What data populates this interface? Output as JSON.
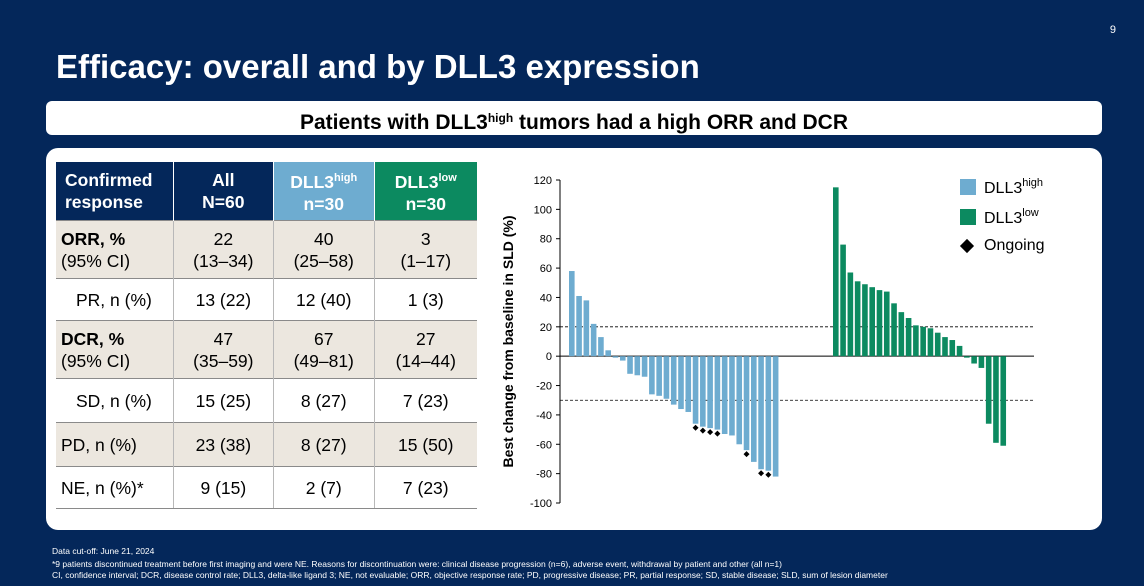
{
  "slide_number": "9",
  "title": "Efficacy: overall and by DLL3 expression",
  "banner": {
    "pre": "Patients with DLL3",
    "sup": "high",
    "post": " tumors had a high ORR and DCR"
  },
  "table": {
    "header": {
      "c0": [
        "Confirmed",
        "response"
      ],
      "c1": [
        "All",
        "N=60"
      ],
      "c2": {
        "base": "DLL3",
        "sup": "high",
        "n": "n=30"
      },
      "c3": {
        "base": "DLL3",
        "sup": "low",
        "n": "n=30"
      }
    },
    "rows": [
      {
        "label": "ORR, %",
        "label2": "(95% CI)",
        "all": "22",
        "all2": "(13–34)",
        "high": "40",
        "high2": "(25–58)",
        "low": "3",
        "low2": "(1–17)"
      },
      {
        "label": "PR, n (%)",
        "all": "13 (22)",
        "high": "12 (40)",
        "low": "1 (3)"
      },
      {
        "label": "DCR, %",
        "label2": "(95% CI)",
        "all": "47",
        "all2": "(35–59)",
        "high": "67",
        "high2": "(49–81)",
        "low": "27",
        "low2": "(14–44)"
      },
      {
        "label": "SD, n (%)",
        "all": "15 (25)",
        "high": "8 (27)",
        "low": "7 (23)"
      },
      {
        "label": "PD, n (%)",
        "all": "23 (38)",
        "high": "8 (27)",
        "low": "15 (50)"
      },
      {
        "label": "NE, n (%)*",
        "all": "9 (15)",
        "high": "2 (7)",
        "low": "7 (23)"
      }
    ]
  },
  "legend": {
    "high_base": "DLL3",
    "high_sup": "high",
    "low_base": "DLL3",
    "low_sup": "low",
    "ongoing": "Ongoing"
  },
  "colors": {
    "high": "#6eacd0",
    "low": "#0c8a60",
    "navy": "#04275a"
  },
  "chart_data": {
    "type": "bar",
    "ylabel": "Best change from baseline in SLD (%)",
    "ylim": [
      -100,
      120
    ],
    "yticks": [
      120,
      100,
      80,
      60,
      40,
      20,
      0,
      -20,
      -40,
      -60,
      -80,
      -100
    ],
    "reference_lines": [
      20,
      -30
    ],
    "series": [
      {
        "name": "DLL3 high",
        "values": [
          58,
          41,
          38,
          22,
          13,
          4,
          -1,
          -3,
          -12,
          -13,
          -14,
          -26,
          -27,
          -29,
          -33,
          -36,
          -38,
          -46,
          -48,
          -49,
          -50,
          -53,
          -54,
          -60,
          -64,
          -72,
          -77,
          -78,
          -82
        ],
        "ongoing": [
          17,
          18,
          19,
          20,
          24,
          26,
          27
        ]
      },
      {
        "name": "DLL3 low",
        "values": [
          115,
          76,
          57,
          51,
          49,
          47,
          45,
          44,
          36,
          30,
          26,
          21,
          20,
          19,
          16,
          13,
          11,
          7,
          -1,
          -5,
          -8,
          -46,
          -59,
          -61
        ],
        "ongoing": []
      }
    ]
  },
  "footnotes": [
    "Data cut-off: June 21, 2024",
    "*9 patients discontinued treatment before first imaging and were NE. Reasons for discontinuation were: clinical disease progression (n=6), adverse event, withdrawal by patient and other (all n=1)",
    "CI, confidence interval; DCR, disease control rate; DLL3, delta-like ligand 3; NE, not evaluable; ORR, objective response rate; PD, progressive disease; PR, partial response; SD, stable disease; SLD, sum of lesion diameter"
  ]
}
